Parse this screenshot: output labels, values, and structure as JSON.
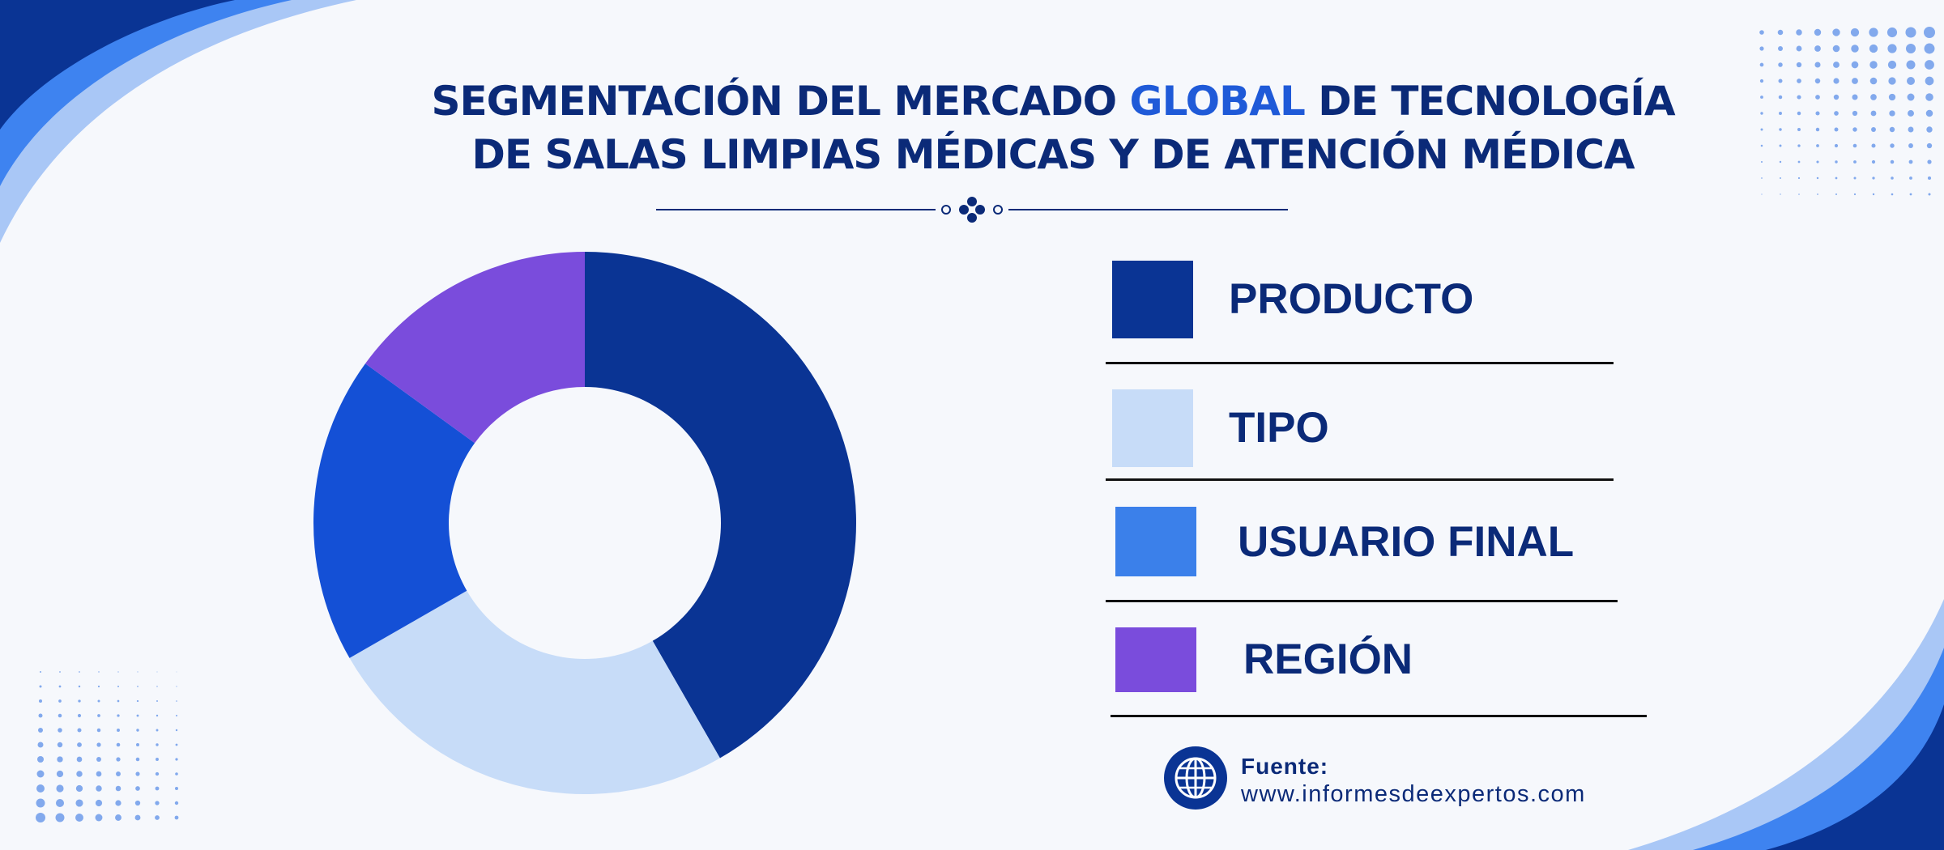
{
  "title": {
    "line1_before": "SEGMENTACIÓN DEL MERCADO ",
    "line1_highlight": "GLOBAL",
    "line1_after": " DE TECNOLOGÍA",
    "line2": "DE SALAS LIMPIAS MÉDICAS Y DE ATENCIÓN MÉDICA"
  },
  "colors": {
    "title": "#0b2a78",
    "title_highlight": "#1f5ad8",
    "background": "#f6f8fc"
  },
  "chart_data": {
    "type": "pie",
    "donut": true,
    "categories": [
      "PRODUCTO",
      "TIPO",
      "USUARIO FINAL",
      "REGIÓN"
    ],
    "values": [
      41.7,
      25,
      18.3,
      15
    ],
    "colors": [
      "#0a3494",
      "#c7dcf8",
      "#1450d6",
      "#7a4cdc"
    ],
    "legend_position": "right"
  },
  "legend": [
    {
      "label": "PRODUCTO",
      "color": "#0a3494"
    },
    {
      "label": "TIPO",
      "color": "#c7dcf8"
    },
    {
      "label": "USUARIO FINAL",
      "color": "#3b80ea"
    },
    {
      "label": "REGIÓN",
      "color": "#7a4cdc"
    }
  ],
  "source": {
    "label": "Fuente:",
    "url": "www.informesdeexpertos.com",
    "icon": "globe-icon"
  }
}
